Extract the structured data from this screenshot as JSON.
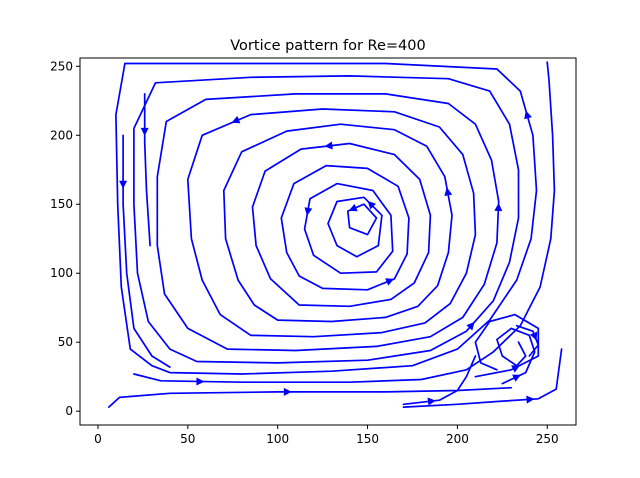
{
  "chart_data": {
    "type": "streamplot",
    "title": "Vortice pattern for Re=400",
    "xlabel": "",
    "ylabel": "",
    "xlim": [
      -10,
      266
    ],
    "ylim": [
      -10,
      256
    ],
    "xticks": [
      0,
      50,
      100,
      150,
      200,
      250
    ],
    "yticks": [
      0,
      50,
      100,
      150,
      200,
      250
    ],
    "grid": false,
    "legend": "none",
    "color": "#0000ff",
    "streamlines": [
      {
        "points": [
          [
            6,
            3
          ],
          [
            12,
            10
          ],
          [
            40,
            13
          ],
          [
            100,
            14
          ],
          [
            160,
            14
          ],
          [
            200,
            15
          ],
          [
            230,
            17
          ]
        ],
        "arrow": 0.45
      },
      {
        "points": [
          [
            20,
            27
          ],
          [
            35,
            22
          ],
          [
            80,
            21
          ],
          [
            140,
            21
          ],
          [
            180,
            23
          ],
          [
            205,
            30
          ],
          [
            220,
            43
          ],
          [
            235,
            62
          ],
          [
            246,
            90
          ],
          [
            252,
            125
          ],
          [
            254,
            160
          ],
          [
            253,
            200
          ],
          [
            251,
            240
          ],
          [
            250,
            253
          ]
        ],
        "arrow": 0.1
      },
      {
        "points": [
          [
            40,
            28
          ],
          [
            80,
            27
          ],
          [
            130,
            29
          ],
          [
            175,
            33
          ],
          [
            200,
            45
          ],
          [
            218,
            66
          ],
          [
            233,
            95
          ],
          [
            241,
            125
          ],
          [
            244,
            160
          ],
          [
            242,
            200
          ],
          [
            235,
            232
          ],
          [
            222,
            248
          ],
          [
            160,
            252
          ],
          [
            80,
            252
          ],
          [
            15,
            252
          ],
          [
            10,
            215
          ],
          [
            11,
            150
          ],
          [
            13,
            90
          ],
          [
            18,
            45
          ],
          [
            30,
            33
          ],
          [
            40,
            28
          ]
        ],
        "arrow": 0.42
      },
      {
        "points": [
          [
            55,
            36
          ],
          [
            100,
            35
          ],
          [
            150,
            37
          ],
          [
            185,
            44
          ],
          [
            205,
            58
          ],
          [
            220,
            80
          ],
          [
            229,
            108
          ],
          [
            234,
            140
          ],
          [
            234,
            175
          ],
          [
            229,
            208
          ],
          [
            218,
            232
          ],
          [
            195,
            241
          ],
          [
            140,
            243
          ],
          [
            85,
            242
          ],
          [
            32,
            238
          ],
          [
            20,
            205
          ],
          [
            20,
            150
          ],
          [
            22,
            100
          ],
          [
            28,
            65
          ],
          [
            40,
            45
          ],
          [
            55,
            36
          ]
        ],
        "arrow": 0.24
      },
      {
        "points": [
          [
            72,
            45
          ],
          [
            110,
            44
          ],
          [
            155,
            47
          ],
          [
            185,
            54
          ],
          [
            203,
            68
          ],
          [
            215,
            92
          ],
          [
            222,
            122
          ],
          [
            223,
            152
          ],
          [
            219,
            182
          ],
          [
            210,
            208
          ],
          [
            195,
            223
          ],
          [
            160,
            230
          ],
          [
            110,
            230
          ],
          [
            60,
            226
          ],
          [
            38,
            210
          ],
          [
            33,
            170
          ],
          [
            33,
            120
          ],
          [
            37,
            85
          ],
          [
            50,
            60
          ],
          [
            72,
            45
          ]
        ],
        "arrow": 0.35
      },
      {
        "points": [
          [
            85,
            55
          ],
          [
            120,
            54
          ],
          [
            158,
            57
          ],
          [
            182,
            64
          ],
          [
            196,
            78
          ],
          [
            205,
            100
          ],
          [
            210,
            128
          ],
          [
            209,
            158
          ],
          [
            203,
            186
          ],
          [
            190,
            206
          ],
          [
            165,
            217
          ],
          [
            125,
            219
          ],
          [
            85,
            215
          ],
          [
            58,
            200
          ],
          [
            50,
            168
          ],
          [
            52,
            125
          ],
          [
            58,
            95
          ],
          [
            68,
            70
          ],
          [
            85,
            55
          ]
        ],
        "arrow": 0.7
      },
      {
        "points": [
          [
            100,
            66
          ],
          [
            130,
            65
          ],
          [
            160,
            68
          ],
          [
            178,
            76
          ],
          [
            189,
            91
          ],
          [
            195,
            115
          ],
          [
            197,
            142
          ],
          [
            193,
            170
          ],
          [
            183,
            192
          ],
          [
            165,
            204
          ],
          [
            135,
            208
          ],
          [
            105,
            203
          ],
          [
            80,
            188
          ],
          [
            70,
            160
          ],
          [
            71,
            125
          ],
          [
            78,
            95
          ],
          [
            87,
            77
          ],
          [
            100,
            66
          ]
        ],
        "arrow": 0.38
      },
      {
        "points": [
          [
            112,
            77
          ],
          [
            140,
            76
          ],
          [
            163,
            81
          ],
          [
            176,
            93
          ],
          [
            184,
            115
          ],
          [
            185,
            142
          ],
          [
            179,
            168
          ],
          [
            165,
            186
          ],
          [
            140,
            194
          ],
          [
            113,
            190
          ],
          [
            93,
            174
          ],
          [
            86,
            148
          ],
          [
            88,
            120
          ],
          [
            96,
            96
          ],
          [
            112,
            77
          ]
        ],
        "arrow": 0.6
      },
      {
        "points": [
          [
            125,
            89
          ],
          [
            150,
            88
          ],
          [
            165,
            96
          ],
          [
            172,
            114
          ],
          [
            173,
            140
          ],
          [
            167,
            163
          ],
          [
            150,
            176
          ],
          [
            127,
            178
          ],
          [
            109,
            165
          ],
          [
            102,
            140
          ],
          [
            105,
            115
          ],
          [
            112,
            98
          ],
          [
            125,
            89
          ]
        ],
        "arrow": 0.17
      },
      {
        "points": [
          [
            135,
            100
          ],
          [
            155,
            101
          ],
          [
            164,
            116
          ],
          [
            163,
            142
          ],
          [
            153,
            160
          ],
          [
            133,
            165
          ],
          [
            118,
            154
          ],
          [
            115,
            132
          ],
          [
            120,
            113
          ],
          [
            135,
            100
          ]
        ],
        "arrow": 0.73
      },
      {
        "points": [
          [
            144,
            112
          ],
          [
            156,
            120
          ],
          [
            158,
            142
          ],
          [
            148,
            155
          ],
          [
            133,
            152
          ],
          [
            128,
            136
          ],
          [
            133,
            120
          ],
          [
            144,
            112
          ]
        ],
        "arrow": 0.4
      },
      {
        "points": [
          [
            150,
            128
          ],
          [
            155,
            140
          ],
          [
            148,
            150
          ],
          [
            139,
            145
          ],
          [
            140,
            133
          ],
          [
            150,
            128
          ]
        ],
        "arrow": 0.55
      },
      {
        "points": [
          [
            170,
            3
          ],
          [
            200,
            5
          ],
          [
            222,
            7
          ],
          [
            245,
            9
          ],
          [
            255,
            16
          ],
          [
            258,
            45
          ]
        ],
        "arrow": 0.65
      },
      {
        "points": [
          [
            225,
            20
          ],
          [
            238,
            28
          ],
          [
            243,
            43
          ],
          [
            240,
            55
          ],
          [
            230,
            60
          ],
          [
            222,
            52
          ],
          [
            225,
            40
          ],
          [
            233,
            33
          ],
          [
            238,
            40
          ],
          [
            234,
            50
          ]
        ],
        "arrow": 0.1
      },
      {
        "points": [
          [
            210,
            25
          ],
          [
            230,
            30
          ],
          [
            245,
            40
          ],
          [
            245,
            60
          ],
          [
            232,
            70
          ],
          [
            218,
            65
          ],
          [
            210,
            50
          ],
          [
            213,
            35
          ],
          [
            222,
            30
          ]
        ],
        "arrow": 0.2
      },
      {
        "points": [
          [
            233,
            62
          ],
          [
            242,
            58
          ],
          [
            245,
            48
          ],
          [
            240,
            40
          ]
        ],
        "arrow": 0.5
      },
      {
        "points": [
          [
            170,
            5
          ],
          [
            190,
            8
          ],
          [
            200,
            15
          ],
          [
            205,
            25
          ],
          [
            210,
            40
          ]
        ],
        "arrow": 0.3
      },
      {
        "points": [
          [
            14,
            200
          ],
          [
            14,
            150
          ],
          [
            16,
            100
          ],
          [
            20,
            60
          ],
          [
            30,
            40
          ],
          [
            40,
            32
          ]
        ],
        "arrow": 0.2
      },
      {
        "points": [
          [
            26,
            230
          ],
          [
            26,
            195
          ],
          [
            27,
            160
          ],
          [
            29,
            120
          ]
        ],
        "arrow": 0.25
      }
    ]
  }
}
